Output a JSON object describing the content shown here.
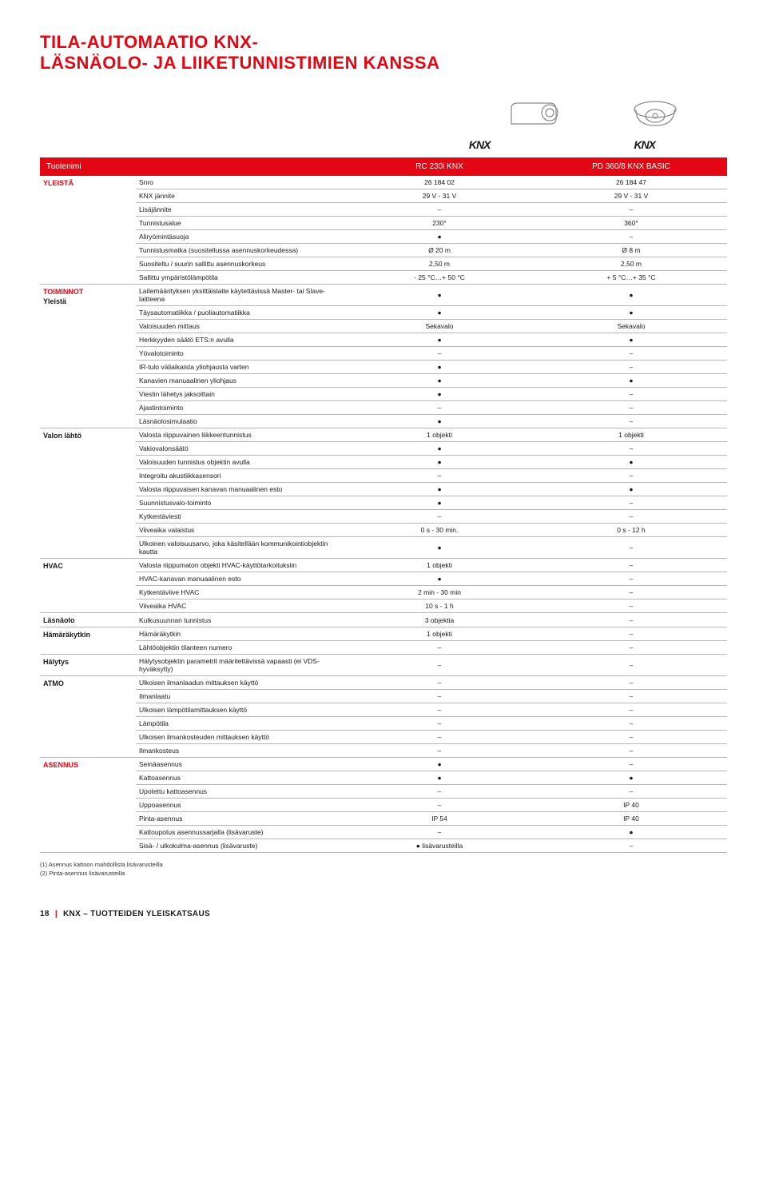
{
  "title_line1": "TILA-AUTOMAATIO KNX-",
  "title_line2": "LÄSNÄOLO- JA LIIKETUNNISTIMIEN KANSSA",
  "knx_brand": "KNX",
  "header": {
    "tuotenimi": "Tuotenimi",
    "products": [
      "RC 230i KNX",
      "PD 360/8 KNX BASIC"
    ]
  },
  "sections": [
    {
      "section": "YLEISTÄ",
      "rows": [
        {
          "param": "Snro",
          "v": [
            "26 184 02",
            "26 184 47"
          ]
        },
        {
          "param": "KNX jännite",
          "v": [
            "29 V - 31 V",
            "29 V - 31 V"
          ]
        },
        {
          "param": "Lisäjännite",
          "v": [
            "–",
            "–"
          ]
        },
        {
          "param": "Tunnistusalue",
          "v": [
            "230°",
            "360°"
          ]
        },
        {
          "param": "Aliryömintäsuoja",
          "v": [
            "●",
            "–"
          ]
        },
        {
          "param": "Tunnistusmatka (suositellussa asennuskorkeudessa)",
          "v": [
            "Ø 20 m",
            "Ø 8 m"
          ]
        },
        {
          "param": "Suositeltu / suurin sallittu asennuskorkeus",
          "v": [
            "2,50 m",
            "2,50 m"
          ]
        },
        {
          "param": "Sallittu ympäristölämpötila",
          "v": [
            "- 25 °C…+ 50 °C",
            "+ 5 °C…+ 35 °C"
          ]
        }
      ]
    },
    {
      "section": "TOIMINNOT",
      "label": "Yleistä",
      "rows": [
        {
          "param": "Laitemäärityksen yksittäislaite käytettävissä Master- tai Slave-laitteena",
          "v": [
            "●",
            "●"
          ]
        },
        {
          "param": "Täysautomatiikka / puoliautomatiikka",
          "v": [
            "●",
            "●"
          ]
        },
        {
          "param": "Valoisuuden mittaus",
          "v": [
            "Sekavalo",
            "Sekavalo"
          ]
        },
        {
          "param": "Herkkyyden säätö ETS:n avulla",
          "v": [
            "●",
            "●"
          ]
        },
        {
          "param": "Yövalotoiminto",
          "v": [
            "–",
            "–"
          ]
        },
        {
          "param": "IR-tulo väliaikaista yliohjausta varten",
          "v": [
            "●",
            "–"
          ]
        },
        {
          "param": "Kanavien manuaalinen yliohjaus",
          "v": [
            "●",
            "●"
          ]
        },
        {
          "param": "Viestin lähetys jaksoittain",
          "v": [
            "●",
            "–"
          ]
        },
        {
          "param": "Ajastintoiminto",
          "v": [
            "–",
            "–"
          ]
        },
        {
          "param": "Läsnäolosimulaatio",
          "v": [
            "●",
            "–"
          ]
        }
      ]
    },
    {
      "label": "Valon lähtö",
      "rows": [
        {
          "param": "Valosta riippuvainen liikkeentunnistus",
          "v": [
            "1 objekti",
            "1 objekti"
          ]
        },
        {
          "param": "Vakiovalonsäätö",
          "v": [
            "●",
            "–"
          ]
        },
        {
          "param": "Valoisuuden tunnistus objektin avulla",
          "v": [
            "●",
            "●"
          ]
        },
        {
          "param": "Integroitu akustiikkasensori",
          "v": [
            "–",
            "–"
          ]
        },
        {
          "param": "Valosta riippuvaisen kanavan manuaalinen esto",
          "v": [
            "●",
            "●"
          ]
        },
        {
          "param": "Suunnistusvalo-toiminto",
          "v": [
            "●",
            "–"
          ]
        },
        {
          "param": "Kytkentäviesti",
          "v": [
            "–",
            "–"
          ]
        },
        {
          "param": "Viiveaika valaistus",
          "v": [
            "0 s - 30 min.",
            "0 s - 12 h"
          ]
        },
        {
          "param": "Ulkoinen valoisuusarvo, joka käsitellään kommunikointiobjektin kautta",
          "v": [
            "●",
            "–"
          ]
        }
      ]
    },
    {
      "label": "HVAC",
      "rows": [
        {
          "param": "Valosta riippumaton objekti HVAC-käyttötarkoituksiin",
          "v": [
            "1 objekti",
            "–"
          ]
        },
        {
          "param": "HVAC-kanavan manuaalinen esto",
          "v": [
            "●",
            "–"
          ]
        },
        {
          "param": "Kytkentäviive HVAC",
          "v": [
            "2 min - 30 min",
            "–"
          ]
        },
        {
          "param": "Viiveaika HVAC",
          "v": [
            "10 s - 1 h",
            "–"
          ]
        }
      ]
    },
    {
      "label": "Läsnäolo",
      "rows": [
        {
          "param": "Kulkusuunnan tunnistus",
          "v": [
            "3 objektia",
            "–"
          ]
        }
      ]
    },
    {
      "label": "Hämäräkytkin",
      "rows": [
        {
          "param": "Hämäräkytkin",
          "v": [
            "1 objekti",
            "–"
          ]
        },
        {
          "param": "Lähtöobjektin tilanteen numero",
          "v": [
            "–",
            "–"
          ]
        }
      ]
    },
    {
      "label": "Hälytys",
      "rows": [
        {
          "param": "Hälytysobjektin parametrit määritettävissä vapaasti (ei VDS-hyväksytty)",
          "v": [
            "–",
            "–"
          ]
        }
      ]
    },
    {
      "label": "ATMO",
      "rows": [
        {
          "param": "Ulkoisen ilmanlaadun mittauksen käyttö",
          "v": [
            "–",
            "–"
          ]
        },
        {
          "param": "Ilmanlaatu",
          "v": [
            "–",
            "–"
          ]
        },
        {
          "param": "Ulkoisen lämpötilamittauksen käyttö",
          "v": [
            "–",
            "–"
          ]
        },
        {
          "param": "Lämpötila",
          "v": [
            "–",
            "–"
          ]
        },
        {
          "param": "Ulkoisen ilmankosteuden mittauksen käyttö",
          "v": [
            "–",
            "–"
          ]
        },
        {
          "param": "Ilmankosteus",
          "v": [
            "–",
            "–"
          ]
        }
      ]
    },
    {
      "section": "ASENNUS",
      "rows": [
        {
          "param": "Seinäasennus",
          "v": [
            "●",
            "–"
          ]
        },
        {
          "param": "Kattoasennus",
          "v": [
            "●",
            "●"
          ]
        },
        {
          "param": "Upotettu kattoasennus",
          "v": [
            "–",
            "–"
          ]
        },
        {
          "param": "Uppoasennus",
          "v": [
            "–",
            "IP 40"
          ]
        },
        {
          "param": "Pinta-asennus",
          "v": [
            "IP 54",
            "IP 40"
          ]
        },
        {
          "param": "Kattoupotus asennussarjalla (lisävaruste)",
          "v": [
            "–",
            "●"
          ]
        },
        {
          "param": "Sisä- / ulkokulma-asennus (lisävaruste)",
          "v": [
            "● lisävarusteilla",
            "–"
          ]
        }
      ]
    }
  ],
  "footnotes": [
    "(1)  Asennus kattoon mahdollista lisävarusteilla",
    "(2)  Pinta-asennus lisävarusteilla"
  ],
  "footer": {
    "page": "18",
    "sep": "|",
    "text": "KNX – TUOTTEIDEN YLEISKATSAUS"
  }
}
